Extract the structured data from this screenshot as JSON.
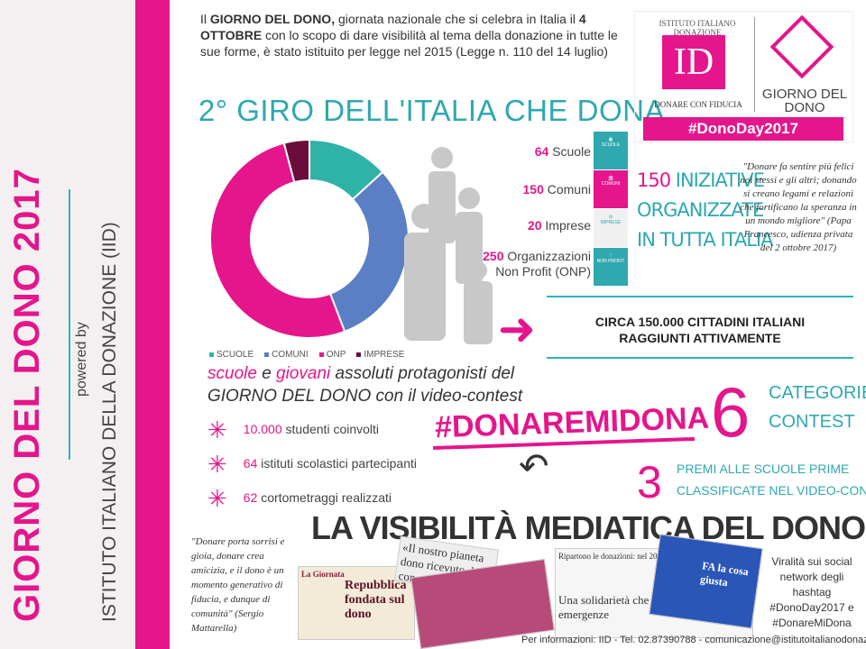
{
  "side": {
    "title": "GIORNO DEL DONO 2017",
    "powered": "powered by",
    "institute": "ISTITUTO ITALIANO DELLA DONAZIONE (IID)"
  },
  "intro": {
    "p1": "Il ",
    "b1": "GIORNO DEL DONO,",
    "p2": " giornata nazionale che si celebra in Italia il ",
    "b2": "4 OTTOBRE",
    "p3": " con lo scopo di dare visibilità al tema della donazione in tutte le sue forme, è stato istituito per legge nel 2015 (Legge n. 110 del 14 luglio)"
  },
  "heading": "2° GIRO DELL'ITALIA CHE DONA",
  "logo": {
    "iid_text": "ISTITUTO ITALIANO DONAZIONE",
    "iid_mark": "ID",
    "iid_sub": "DONARE CON FIDUCIA",
    "gdd": "GIORNO DEL DONO",
    "hashtag": "#DonoDay2017"
  },
  "chart_data": {
    "type": "pie",
    "donut": true,
    "categories": [
      "SCUOLE",
      "COMUNI",
      "ONP",
      "IMPRESE"
    ],
    "values": [
      64,
      150,
      250,
      20
    ],
    "colors": [
      "#2fb3a6",
      "#5b7fc4",
      "#e5158c",
      "#6b0d3a"
    ],
    "legend": "bottom"
  },
  "counts": [
    {
      "n": "64",
      "label": "Scuole"
    },
    {
      "n": "150",
      "label": "Comuni"
    },
    {
      "n": "20",
      "label": "Imprese"
    },
    {
      "n": "250",
      "label": "Organizzazioni Non Profit (ONP)"
    }
  ],
  "tiles": [
    {
      "label": "SCUOLE",
      "color": "#2fa8b0"
    },
    {
      "label": "COMUNI",
      "color": "#e5158c"
    },
    {
      "label": "IMPRESE",
      "color": "#f0f0f0"
    },
    {
      "label": "NON PROFIT",
      "color": "#2fa8b0"
    }
  ],
  "iniziative": {
    "n": "150",
    "l1": "INIZIATIVE",
    "l2": "ORGANIZZATE",
    "l3": "IN TUTTA ITALIA"
  },
  "papa_quote": "\"Donare fa sentire più felici noi stessi e gli altri; donando si creano legami e relazioni che fortificano la speranza in un mondo migliore\" (Papa Francesco, udienza privata del 2 ottobre 2017)",
  "circa": {
    "l1": "CIRCA 150.000 CITTADINI ITALIANI",
    "l2": "RAGGIUNTI ATTIVAMENTE"
  },
  "protagonisti": {
    "w1": "scuole",
    "w2": " e ",
    "w3": "giovani",
    "w4": " assoluti protagonisti del",
    "l2": "GIORNO DEL DONO con il video-contest"
  },
  "stats": [
    {
      "n": "10.000",
      "t": "studenti coinvolti"
    },
    {
      "n": "64",
      "t": "istituti scolastici partecipanti"
    },
    {
      "n": "62",
      "t": "cortometraggi realizzati"
    }
  ],
  "contest": {
    "hashtag": "#DONAREMIDONA",
    "six": "6",
    "cat1": "CATEGORIE",
    "cat2": "CONTEST",
    "three": "3",
    "premi1": "PREMI ALLE SCUOLE PRIME",
    "premi2": "CLASSIFICATE NEL VIDEO-CONTEST"
  },
  "visibility": "LA VISIBILITÀ MEDIATICA DEL DONO",
  "mattarella": "\"Donare porta sorrisi e gioia, donare crea amicizia, e il dono è un momento generativo di fiducia, e dunque di comunità\" (Sergio Mattarella)",
  "press": {
    "c1a": "La Giornata",
    "c1b": "Repubblica fondata sul dono",
    "c2": "«Il nostro pianeta dono ricevuto da con...",
    "c3a": "Ripartono le donazioni: nel 2016 tornate ai livelli pre-crisi",
    "c3b": "Una solidarietà che va oltre le emergenze",
    "c4": "FA la cosa giusta"
  },
  "viral": "Viralità sui social network degli hashtag #DonoDay2017 e #DonareMiDona",
  "footer": "Per informazioni: IID - Tel. 02.87390788 - comunicazione@istitutoitalianodonazione.it"
}
